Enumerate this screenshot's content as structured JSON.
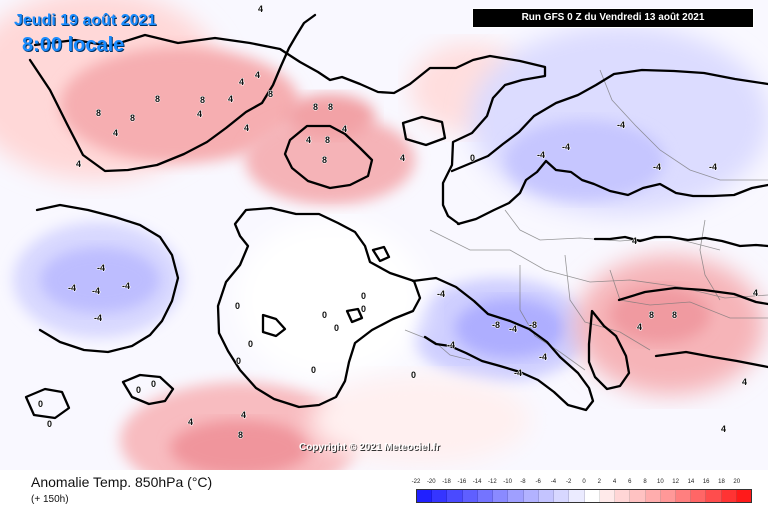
{
  "header": {
    "date_text": "Jeudi 19 août 2021",
    "time_text": "8:00 locale",
    "run_text": "Run GFS 0 Z du Vendredi 13 août 2021"
  },
  "footer": {
    "title": "Anomalie Temp. 850hPa (°C)",
    "subtitle": "(+ 150h)",
    "copyright": "Copyright © 2021 Meteociel.fr"
  },
  "legend": {
    "labels": [
      "-22",
      "-20",
      "-18",
      "-16",
      "-14",
      "-12",
      "-10",
      "-8",
      "-6",
      "-4",
      "-2",
      "0",
      "2",
      "4",
      "6",
      "8",
      "10",
      "12",
      "14",
      "16",
      "18",
      "20"
    ],
    "colors": [
      "#2020ff",
      "#3535ff",
      "#4a4aff",
      "#5f5fff",
      "#7474ff",
      "#8a8aff",
      "#9f9fff",
      "#b2b2ff",
      "#c4c4ff",
      "#d7d7ff",
      "#ebebff",
      "#ffffff",
      "#ffeaea",
      "#ffd6d6",
      "#ffc2c2",
      "#ffadad",
      "#ff9898",
      "#ff7f7f",
      "#ff6666",
      "#ff4d4d",
      "#ff3333",
      "#ff1a1a"
    ]
  },
  "map_labels": [
    {
      "id": "greenland-n",
      "text": "4"
    },
    {
      "id": "greenland-1",
      "text": "8"
    },
    {
      "id": "greenland-2",
      "text": "4"
    },
    {
      "id": "greenland-3",
      "text": "8"
    },
    {
      "id": "greenland-4",
      "text": "8"
    },
    {
      "id": "greenland-5",
      "text": "4"
    },
    {
      "id": "greenland-6",
      "text": "4"
    },
    {
      "id": "greenland-7",
      "text": "4"
    },
    {
      "id": "greenland-8",
      "text": "8"
    },
    {
      "id": "greenland-9",
      "text": "4"
    },
    {
      "id": "greenland-10",
      "text": "4"
    },
    {
      "id": "greenland-11",
      "text": "8"
    },
    {
      "id": "greenland-12",
      "text": "4"
    },
    {
      "id": "iceland-1",
      "text": "8"
    },
    {
      "id": "iceland-2",
      "text": "8"
    },
    {
      "id": "iceland-3",
      "text": "4"
    },
    {
      "id": "iceland-4",
      "text": "8"
    },
    {
      "id": "iceland-5",
      "text": "4"
    },
    {
      "id": "iceland-6",
      "text": "8"
    },
    {
      "id": "iceland-7",
      "text": "4"
    },
    {
      "id": "scan-1",
      "text": "-4"
    },
    {
      "id": "scan-2",
      "text": "-4"
    },
    {
      "id": "scan-3",
      "text": "-4"
    },
    {
      "id": "scan-4",
      "text": "-4"
    },
    {
      "id": "scan-5",
      "text": "-4"
    },
    {
      "id": "scan-6",
      "text": "0"
    },
    {
      "id": "atl-1",
      "text": "-4"
    },
    {
      "id": "atl-2",
      "text": "-4"
    },
    {
      "id": "atl-3",
      "text": "-4"
    },
    {
      "id": "atl-4",
      "text": "-4"
    },
    {
      "id": "atl-5",
      "text": "-4"
    },
    {
      "id": "atl-6",
      "text": "0"
    },
    {
      "id": "atl-7",
      "text": "0"
    },
    {
      "id": "med-1",
      "text": "-4"
    },
    {
      "id": "med-2",
      "text": "-4"
    },
    {
      "id": "med-3",
      "text": "-8"
    },
    {
      "id": "med-4",
      "text": "-8"
    },
    {
      "id": "med-5",
      "text": "-4"
    },
    {
      "id": "med-6",
      "text": "-4"
    },
    {
      "id": "med-7",
      "text": "-4"
    },
    {
      "id": "east-1",
      "text": "4"
    },
    {
      "id": "east-2",
      "text": "8"
    },
    {
      "id": "east-3",
      "text": "8"
    },
    {
      "id": "east-4",
      "text": "4"
    },
    {
      "id": "east-5",
      "text": "4"
    },
    {
      "id": "east-6",
      "text": "4"
    },
    {
      "id": "east-7",
      "text": "4"
    },
    {
      "id": "south-1",
      "text": "4"
    },
    {
      "id": "south-2",
      "text": "8"
    },
    {
      "id": "south-3",
      "text": "4"
    },
    {
      "id": "zero-1",
      "text": "0"
    },
    {
      "id": "zero-2",
      "text": "0"
    },
    {
      "id": "zero-3",
      "text": "0"
    },
    {
      "id": "zero-4",
      "text": "0"
    },
    {
      "id": "zero-5",
      "text": "0"
    },
    {
      "id": "zero-6",
      "text": "0"
    },
    {
      "id": "zero-7",
      "text": "0"
    },
    {
      "id": "zero-8",
      "text": "0"
    },
    {
      "id": "zero-9",
      "text": "0"
    },
    {
      "id": "zero-10",
      "text": "0"
    },
    {
      "id": "zero-11",
      "text": "0"
    }
  ]
}
